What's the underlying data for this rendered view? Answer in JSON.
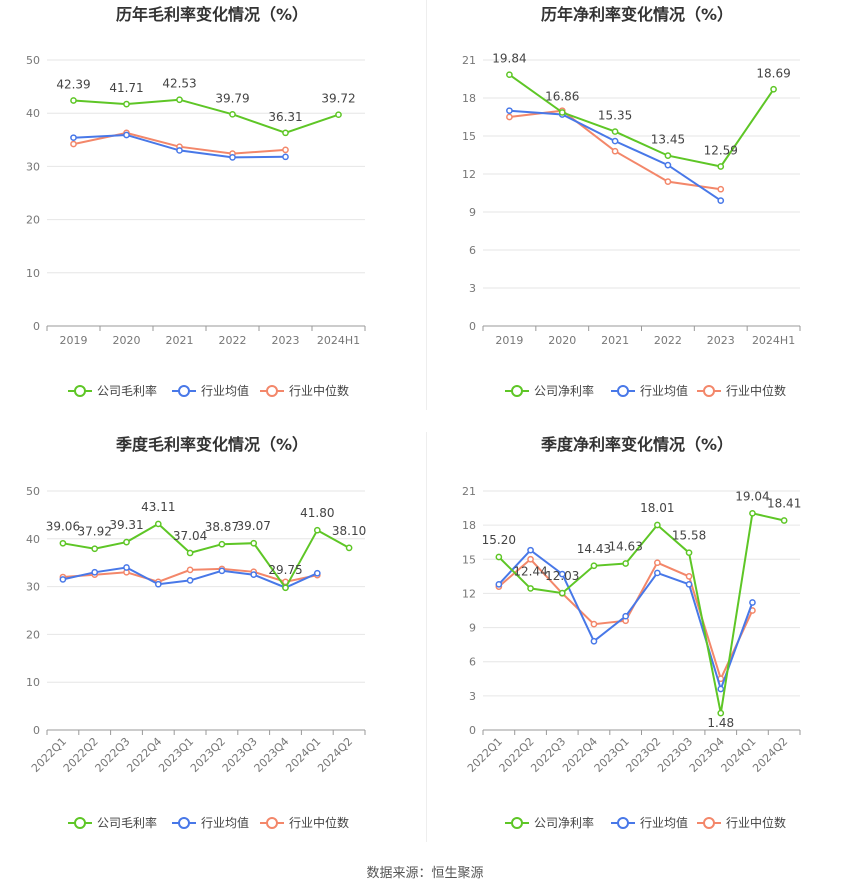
{
  "source": "数据来源：恒生聚源",
  "colors": {
    "company": "#5ec626",
    "industry_avg": "#4878e8",
    "industry_median": "#f3876a"
  },
  "chart_data": [
    {
      "type": "line",
      "title": "历年毛利率变化情况（%）",
      "categories": [
        "2019",
        "2020",
        "2021",
        "2022",
        "2023",
        "2024H1"
      ],
      "ylim": [
        0,
        50
      ],
      "yticks": [
        0,
        10,
        20,
        30,
        40,
        50
      ],
      "grid": true,
      "legend_position": "bottom",
      "series": [
        {
          "name": "公司毛利率",
          "values": [
            42.39,
            41.71,
            42.53,
            39.79,
            36.31,
            39.72
          ],
          "labels": [
            "42.39",
            "41.71",
            "42.53",
            "39.79",
            "36.31",
            "39.72"
          ]
        },
        {
          "name": "行业均值",
          "values": [
            35.4,
            35.9,
            33.0,
            31.7,
            31.8,
            null
          ]
        },
        {
          "name": "行业中位数",
          "values": [
            34.2,
            36.3,
            33.7,
            32.4,
            33.1,
            null
          ]
        }
      ]
    },
    {
      "type": "line",
      "title": "历年净利率变化情况（%）",
      "categories": [
        "2019",
        "2020",
        "2021",
        "2022",
        "2023",
        "2024H1"
      ],
      "ylim": [
        0,
        21
      ],
      "yticks": [
        0,
        3,
        6,
        9,
        12,
        15,
        18,
        21
      ],
      "grid": true,
      "legend_position": "bottom",
      "series": [
        {
          "name": "公司净利率",
          "values": [
            19.84,
            16.86,
            15.35,
            13.45,
            12.59,
            18.69
          ],
          "labels": [
            "19.84",
            "16.86",
            "15.35",
            "13.45",
            "12.59",
            "18.69"
          ]
        },
        {
          "name": "行业均值",
          "values": [
            17.0,
            16.7,
            14.6,
            12.7,
            9.9,
            null
          ]
        },
        {
          "name": "行业中位数",
          "values": [
            16.5,
            17.0,
            13.8,
            11.4,
            10.8,
            null
          ]
        }
      ]
    },
    {
      "type": "line",
      "title": "季度毛利率变化情况（%）",
      "categories": [
        "2022Q1",
        "2022Q2",
        "2022Q3",
        "2022Q4",
        "2023Q1",
        "2023Q2",
        "2023Q3",
        "2023Q4",
        "2024Q1",
        "2024Q2"
      ],
      "ylim": [
        0,
        50
      ],
      "yticks": [
        0,
        10,
        20,
        30,
        40,
        50
      ],
      "grid": true,
      "legend_position": "bottom",
      "series": [
        {
          "name": "公司毛利率",
          "values": [
            39.06,
            37.92,
            39.31,
            43.11,
            37.04,
            38.87,
            39.07,
            29.75,
            41.8,
            38.1
          ],
          "labels": [
            "39.06",
            "37.92",
            "39.31",
            "43.11",
            "37.04",
            "38.87",
            "39.07",
            "29.75",
            "41.80",
            "38.10"
          ]
        },
        {
          "name": "行业均值",
          "values": [
            31.5,
            33.0,
            34.0,
            30.5,
            31.3,
            33.3,
            32.5,
            29.8,
            32.8,
            null
          ]
        },
        {
          "name": "行业中位数",
          "values": [
            32.0,
            32.5,
            33.0,
            31.0,
            33.5,
            33.7,
            33.1,
            31.0,
            32.4,
            null
          ]
        }
      ]
    },
    {
      "type": "line",
      "title": "季度净利率变化情况（%）",
      "categories": [
        "2022Q1",
        "2022Q2",
        "2022Q3",
        "2022Q4",
        "2023Q1",
        "2023Q2",
        "2023Q3",
        "2023Q4",
        "2024Q1",
        "2024Q2"
      ],
      "ylim": [
        0,
        21
      ],
      "yticks": [
        0,
        3,
        6,
        9,
        12,
        15,
        18,
        21
      ],
      "grid": true,
      "legend_position": "bottom",
      "series": [
        {
          "name": "公司净利率",
          "values": [
            15.2,
            12.44,
            12.03,
            14.43,
            14.63,
            18.01,
            15.58,
            1.48,
            19.04,
            18.41
          ],
          "labels": [
            "15.20",
            "12.44",
            "12.03",
            "14.43",
            "14.63",
            "18.01",
            "15.58",
            "1.48",
            "19.04",
            "18.41"
          ]
        },
        {
          "name": "行业均值",
          "values": [
            12.8,
            15.8,
            13.7,
            7.8,
            10.0,
            13.8,
            12.8,
            3.6,
            11.2,
            null
          ]
        },
        {
          "name": "行业中位数",
          "values": [
            12.6,
            15.0,
            12.0,
            9.3,
            9.6,
            14.7,
            13.5,
            4.5,
            10.5,
            null
          ]
        }
      ]
    }
  ]
}
